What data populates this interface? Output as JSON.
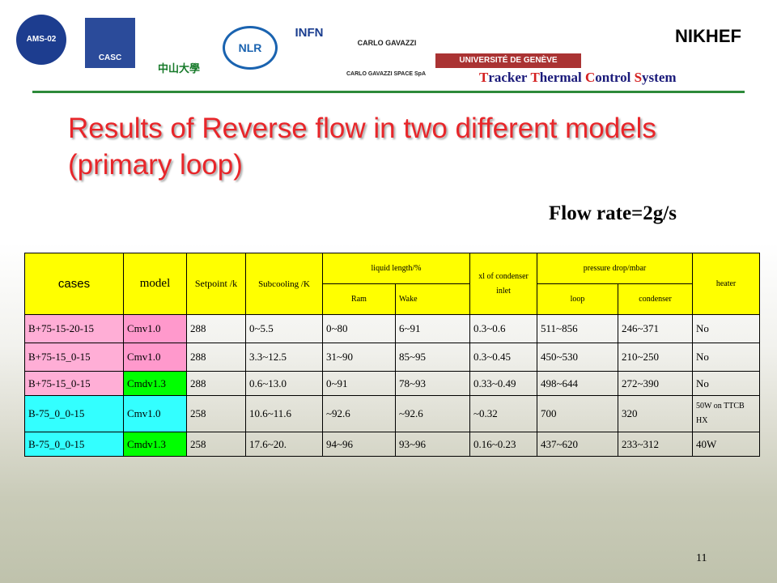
{
  "header": {
    "logos": [
      "AMS-02",
      "CASC",
      "中山大學",
      "NLR",
      "INFN",
      "CARLO GAVAZZI",
      "CARLO GAVAZZI SPACE SpA",
      "UNIVERSITÉ DE GENÈVE",
      "NIKHEF"
    ],
    "system": "Tracker Thermal Control System"
  },
  "title": "Results of Reverse flow in two different models (primary loop)",
  "subtitle": "Flow rate=2g/s",
  "table": {
    "headers": {
      "cases": "cases",
      "model": "model",
      "setpoint": "Setpoint /k",
      "subcooling": "Subcooling /K",
      "liquid": "liquid length/%",
      "ram": "Ram",
      "wake": "Wake",
      "xl": "xl of condenser inlet",
      "pressure": "pressure drop/mbar",
      "loop": "loop",
      "condenser": "condenser",
      "heater": "heater"
    },
    "rows": [
      [
        "B+75-15-20-15",
        "Cmv1.0",
        "288",
        "0~5.5",
        "0~80",
        "6~91",
        "0.3~0.6",
        "511~856",
        "246~371",
        "No"
      ],
      [
        "B+75-15_0-15",
        "Cmv1.0",
        "288",
        "3.3~12.5",
        "31~90",
        "85~95",
        "0.3~0.45",
        "450~530",
        "210~250",
        "No"
      ],
      [
        "B+75-15_0-15",
        "Cmdv1.3",
        "288",
        "0.6~13.0",
        "0~91",
        "78~93",
        "0.33~0.49",
        "498~644",
        "272~390",
        "No"
      ],
      [
        "B-75_0_0-15",
        "Cmv1.0",
        "258",
        "10.6~11.6",
        "~92.6",
        "~92.6",
        "~0.32",
        "700",
        "320",
        "50W on TTCB HX"
      ],
      [
        "B-75_0_0-15",
        "Cmdv1.3",
        "258",
        "17.6~20.",
        "94~96",
        "93~96",
        "0.16~0.23",
        "437~620",
        "233~312",
        "40W"
      ]
    ]
  },
  "page_number": "11"
}
